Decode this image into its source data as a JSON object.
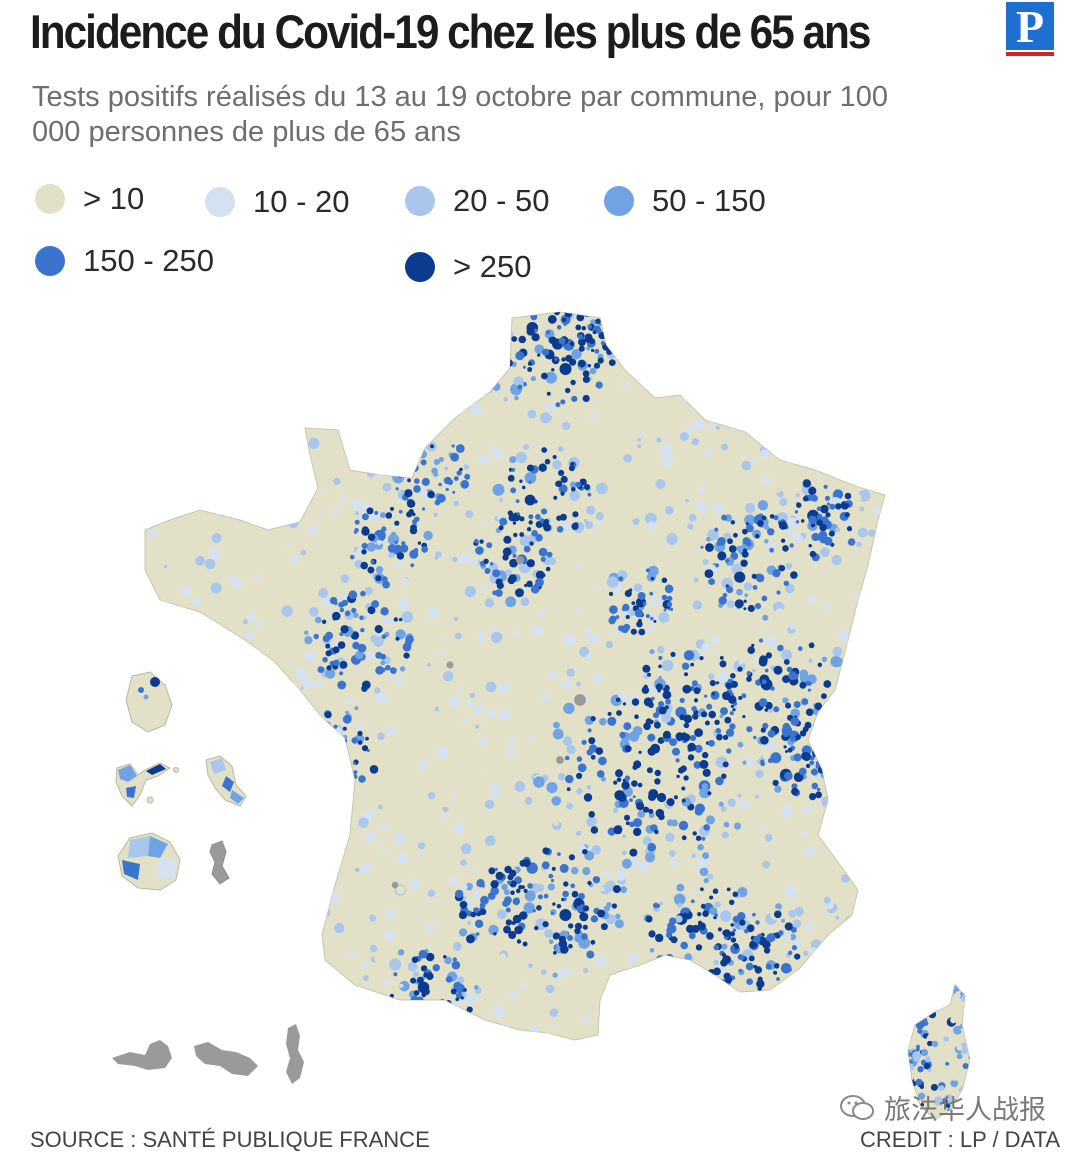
{
  "title": "Incidence du Covid-19 chez les plus de 65 ans",
  "logo": {
    "letter": "P",
    "colors": {
      "blue": "#1f6fd1",
      "red": "#d4202a"
    }
  },
  "subtitle": "Tests positifs réalisés du 13 au 19 octobre par commune, pour 100 000 personnes de plus de 65 ans",
  "legend": [
    {
      "label": "> 10",
      "color": "#e2e1c8"
    },
    {
      "label": "10 - 20",
      "color": "#d3e1f2"
    },
    {
      "label": "20 - 50",
      "color": "#a9c6ed"
    },
    {
      "label": "50 - 150",
      "color": "#6fa3e3"
    },
    {
      "label": "150 - 250",
      "color": "#3a74cf"
    },
    {
      "label": "> 250",
      "color": "#0a3b8e"
    }
  ],
  "map": {
    "regions": [
      "France métropolitaine",
      "Corse",
      "Guadeloupe",
      "Martinique",
      "Guyane",
      "La Réunion",
      "Mayotte",
      "Saint-Pierre-et-Miquelon"
    ],
    "no_data_color": "#9a9a9a"
  },
  "source": "SOURCE : SANTÉ PUBLIQUE FRANCE",
  "credit": "CREDIT : LP / DATA",
  "watermark": "旅法华人战报"
}
